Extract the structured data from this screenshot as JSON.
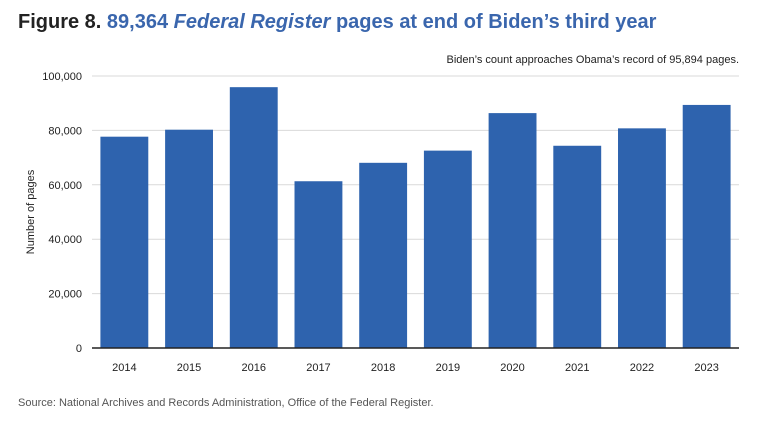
{
  "figure": {
    "number_label": "Figure 8.",
    "title_prefix": "89,364",
    "title_italic": "Federal Register",
    "title_suffix": "pages at end of Biden’s third year"
  },
  "chart_data": {
    "type": "bar",
    "title": "89,364 Federal Register pages at end of Biden’s third year",
    "annotation": "Biden’s count approaches Obama’s record of 95,894 pages.",
    "xlabel": "",
    "ylabel": "Number of pages",
    "categories": [
      "2014",
      "2015",
      "2016",
      "2017",
      "2018",
      "2019",
      "2020",
      "2021",
      "2022",
      "2023"
    ],
    "values": [
      77687,
      80260,
      95894,
      61308,
      68082,
      72564,
      86356,
      74352,
      80756,
      89364
    ],
    "ylim": [
      0,
      100000
    ],
    "yticks": [
      0,
      20000,
      40000,
      60000,
      80000,
      100000
    ],
    "ytick_labels": [
      "0",
      "20,000",
      "40,000",
      "60,000",
      "80,000",
      "100,000"
    ],
    "grid": true,
    "bar_color": "#2e63ae"
  },
  "source": "Source: National Archives and Records Administration, Office of the Federal Register."
}
